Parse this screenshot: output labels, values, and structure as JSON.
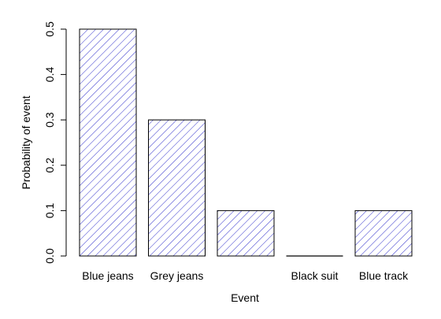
{
  "chart_data": {
    "type": "bar",
    "title": "",
    "xlabel": "Event",
    "ylabel": "Probability of event",
    "categories": [
      "Blue jeans",
      "Grey jeans",
      "",
      "Black suit",
      "Blue track"
    ],
    "values": [
      0.5,
      0.3,
      0.1,
      0.0,
      0.1
    ],
    "ylim": [
      0,
      0.5
    ],
    "yticks": [
      "0.0",
      "0.1",
      "0.2",
      "0.3",
      "0.4",
      "0.5"
    ],
    "grid": false,
    "legend": "none",
    "bar_fill": "hatched",
    "hatch_color": "#3333cc",
    "outline_color": "#000000"
  }
}
